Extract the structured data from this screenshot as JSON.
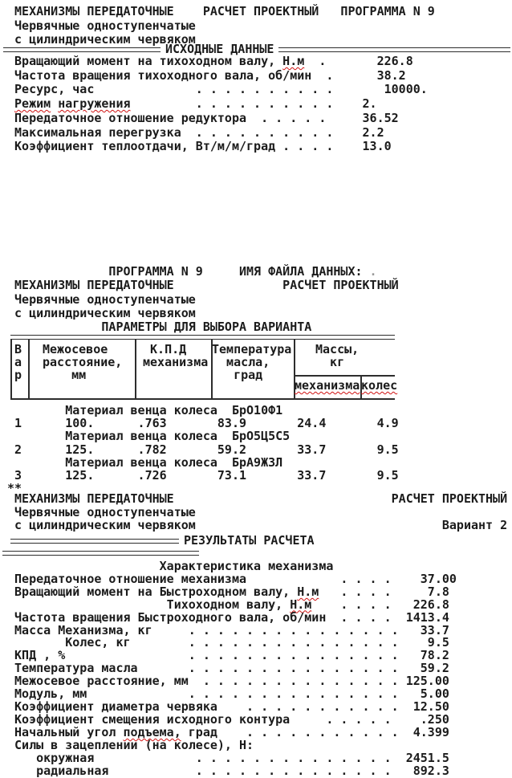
{
  "colors": {
    "text": "#1b1b1b",
    "rule": "#2d2d2d",
    "misspell_underline": "#cf1212",
    "faint_mark": "#9a9a9a",
    "background": "#ffffff"
  },
  "section1": {
    "header_lines": [
      " МЕХАНИЗМЫ ПЕРЕДАТОЧНЫЕ    РАСЧЕТ ПРОЕКТНЫЙ   ПРОГРАММА N 9",
      " Червячные одноступенчатые",
      " с цилиндрическим червяком"
    ],
    "separator_label": "ИСХОДНЫЕ ДАННЫЕ",
    "lines": [
      [
        " Вращающий момент на тихоходном валу, ",
        {
          "t": "Н.м",
          "c": "mis"
        },
        "  .       226.8"
      ],
      " Частота вращения тихоходного вала, об/мин  .      38.2",
      " Ресурс, час              . . . . . . . . . .       10000.",
      [
        " ",
        {
          "t": "Режим",
          "c": "mis"
        },
        " ",
        {
          "t": "нагружения",
          "c": "mis"
        },
        "         . . . . . . . . . .    2."
      ],
      " Передаточное отношение редуктора  . . . . .     36.52",
      " Максимальная перегрузка  . . . . . . . . . .    2.2",
      " Коэффициент теплоотдачи, Вт/м/м/град . . . .    13.0"
    ]
  },
  "section2": {
    "header_lines": [
      [
        "              ПРОГРАММА N 9     ИМЯ ФАЙЛА ДАННЫХ: ",
        {
          "t": ".",
          "c": "faint"
        }
      ],
      " МЕХАНИЗМЫ ПЕРЕДАТОЧНЫЕ               РАСЧЕТ ПРОЕКТНЫЙ",
      " Червячные одноступенчатые",
      " с цилиндрическим червяком",
      "             ПАРАМЕТРЫ ДЛЯ ВЫБОРА ВАРИАНТА"
    ],
    "table": {
      "material_label": "Материал венца колеса",
      "col_headers": {
        "variant": [
          "В",
          "а",
          "р"
        ],
        "center_distance": [
          "Межосевое",
          "расстояние,",
          "    мм"
        ],
        "efficiency": [
          " К.П.Д",
          "механизма"
        ],
        "oil_temp": [
          "Температура",
          "  масла,",
          "   град"
        ],
        "mass": [
          "Массы,",
          "  кг"
        ],
        "mass_sub": [
          "механизма",
          "колес"
        ]
      },
      "rows": [
        {
          "variant": "1",
          "material": "БрО10Ф1",
          "center_distance": "100.",
          "efficiency": ".763",
          "oil_temp": "83.9",
          "mass_mechanism": "24.4",
          "mass_wheels": "4.9"
        },
        {
          "variant": "2",
          "material": "БрО5Ц5С5",
          "center_distance": "125.",
          "efficiency": ".782",
          "oil_temp": "59.2",
          "mass_mechanism": "33.7",
          "mass_wheels": "9.5"
        },
        {
          "variant": "3",
          "material": "БрА9Ж3Л",
          "center_distance": "125.",
          "efficiency": ".726",
          "oil_temp": "73.1",
          "mass_mechanism": "33.7",
          "mass_wheels": "9.5"
        }
      ],
      "footer_mark": "**"
    }
  },
  "section3": {
    "header_lines": [
      " МЕХАНИЗМЫ ПЕРЕДАТОЧНЫЕ                              РАСЧЕТ ПРОЕКТНЫЙ",
      " Червячные одноступенчатые",
      " с цилиндрическим червяком                                  Вариант 2"
    ],
    "separator_label": "РЕЗУЛЬТАТЫ РАСЧЕТА",
    "lines": [
      "                     Характеристика механизма",
      " Передаточное отношение механизма             . . . .    37.00",
      [
        " Вращающий момент на Быстроходном валу, ",
        {
          "t": "Н.м",
          "c": "mis"
        },
        "   . . . .     7.8"
      ],
      [
        "                      Тихоходном валу, ",
        {
          "t": "Н.м",
          "c": "mis"
        },
        "    . . . .   226.8"
      ],
      " Частота вращения Быстроходного вала, об/мин  . . . .  1413.4",
      " Масса Механизма, кг     . . . . . . . . . . . . . . .   33.7",
      "        Колес, кг        . . . . . . . . . . . . . . .    9.5",
      " КПД , %                 . . . . . . . . . . . . . . .   78.2",
      " Температура масла       . . . . . . . . . . . . . . .   59.2",
      " Межосевое расстояние, мм  . . . . . . . . . . . . . . 125.00",
      " Модуль, мм              . . . . . . . . . . . . . . .   5.00",
      " Коэффициент диаметра червяка    . . . . . . . . . . .  12.50",
      [
        " Коэффициент смещения исходного контура     . . . . .    .250"
      ],
      [
        " Начальный угол ",
        {
          "t": "подъема,",
          "c": "mis"
        },
        " град    . . . . . . . . . . .  4.399"
      ],
      " Силы в зацеплении (на колесе), Н:",
      "    окружная              . . . . . . . . . . . . . .  2451.5",
      "    радиальная            . . . . . . . . . . . . . .   892.3"
    ]
  }
}
